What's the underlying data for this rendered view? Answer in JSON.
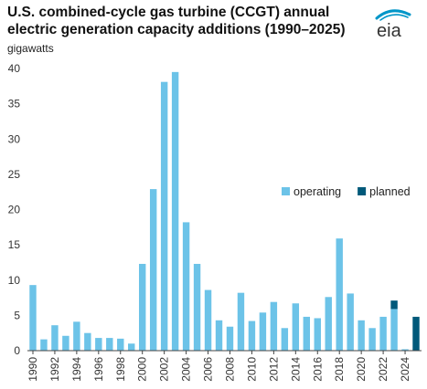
{
  "header": {
    "title": "U.S. combined-cycle gas turbine (CCGT) annual electric generation capacity additions (1990–2025)",
    "unit_label": "gigawatts",
    "logo_text": "eia"
  },
  "colors": {
    "operating": "#6cc3e8",
    "planned": "#00597a",
    "logo_swoosh": "#0096c8",
    "logo_text": "#333333"
  },
  "chart_data": {
    "type": "bar",
    "stacked": true,
    "title": "U.S. combined-cycle gas turbine (CCGT) annual electric generation capacity additions (1990–2025)",
    "ylabel": "gigawatts",
    "ylim": [
      0,
      40
    ],
    "yticks": [
      0,
      5,
      10,
      15,
      20,
      25,
      30,
      35,
      40
    ],
    "grid": false,
    "legend_position": "center-right",
    "categories": [
      1990,
      1991,
      1992,
      1993,
      1994,
      1995,
      1996,
      1997,
      1998,
      1999,
      2000,
      2001,
      2002,
      2003,
      2004,
      2005,
      2006,
      2007,
      2008,
      2009,
      2010,
      2011,
      2012,
      2013,
      2014,
      2015,
      2016,
      2017,
      2018,
      2019,
      2020,
      2021,
      2022,
      2023,
      2024,
      2025
    ],
    "xtick_labels": [
      "1990",
      "1992",
      "1994",
      "1996",
      "1998",
      "2000",
      "2002",
      "2004",
      "2006",
      "2008",
      "2010",
      "2012",
      "2014",
      "2016",
      "2018",
      "2020",
      "2022",
      "2024"
    ],
    "series": [
      {
        "name": "operating",
        "color": "#6cc3e8",
        "values": [
          9.3,
          1.6,
          3.6,
          2.1,
          4.1,
          2.5,
          1.8,
          1.8,
          1.7,
          1.0,
          12.3,
          22.9,
          38.1,
          39.5,
          18.2,
          12.3,
          8.6,
          4.3,
          3.4,
          8.2,
          4.2,
          5.4,
          6.9,
          3.2,
          6.7,
          4.8,
          4.6,
          7.6,
          15.9,
          8.1,
          4.3,
          3.2,
          4.8,
          5.9,
          0.2,
          0.0
        ]
      },
      {
        "name": "planned",
        "color": "#00597a",
        "values": [
          0,
          0,
          0,
          0,
          0,
          0,
          0,
          0,
          0,
          0,
          0,
          0,
          0,
          0,
          0,
          0,
          0,
          0,
          0,
          0,
          0,
          0,
          0,
          0,
          0,
          0,
          0,
          0,
          0,
          0,
          0,
          0,
          0,
          1.2,
          0.0,
          4.8
        ]
      }
    ]
  }
}
